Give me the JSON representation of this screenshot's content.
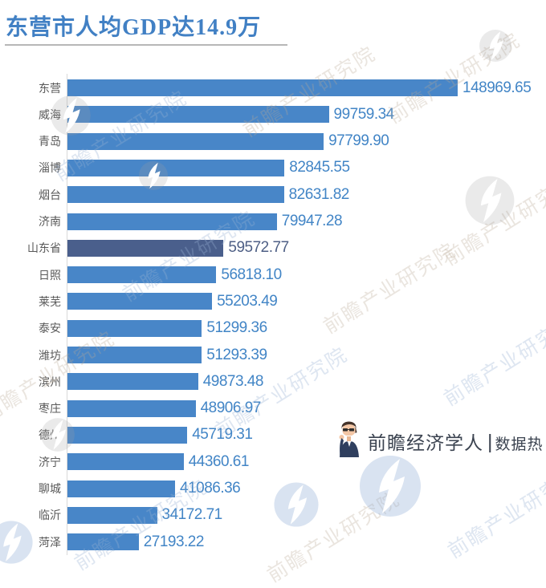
{
  "title": "东营市人均GDP达14.9万",
  "watermark": {
    "text": "前瞻产业研究院"
  },
  "logo": {
    "brand": "前瞻经济学人",
    "separator": "|",
    "sub": "数据热"
  },
  "colors": {
    "title": "#4180c4",
    "bar": "#4886C8",
    "highlight_bar": "#4A5F8C",
    "value_label": "#4285C6",
    "highlight_value_label": "#4E5F85",
    "category_label": "#595959",
    "axis_line": "#d9d9d9",
    "watermark_warm": "rgba(186,168,148,0.30)",
    "watermark_blue": "rgba(152,178,212,0.32)",
    "watermark_icon_gray": "rgba(158,158,158,0.22)",
    "watermark_icon_blue": "rgba(146,176,214,0.35)"
  },
  "chart_data": {
    "type": "bar",
    "orientation": "horizontal",
    "title": "东营市人均GDP达14.9万",
    "categories": [
      "东营",
      "威海",
      "青岛",
      "淄博",
      "烟台",
      "济南",
      "山东省",
      "日照",
      "莱芜",
      "泰安",
      "潍坊",
      "滨州",
      "枣庄",
      "德州",
      "济宁",
      "聊城",
      "临沂",
      "菏泽"
    ],
    "values": [
      148969.65,
      99759.34,
      97799.9,
      82845.55,
      82631.82,
      79947.28,
      59572.77,
      56818.1,
      55203.49,
      51299.36,
      51293.39,
      49873.48,
      48906.97,
      45719.31,
      44360.61,
      41086.36,
      34172.71,
      27193.22
    ],
    "value_decimals": 2,
    "highlight_index": 6,
    "highlight_category": "山东省",
    "xlim": [
      0,
      150000
    ],
    "grid": false,
    "legend": false,
    "data_labels": "outside-end"
  }
}
